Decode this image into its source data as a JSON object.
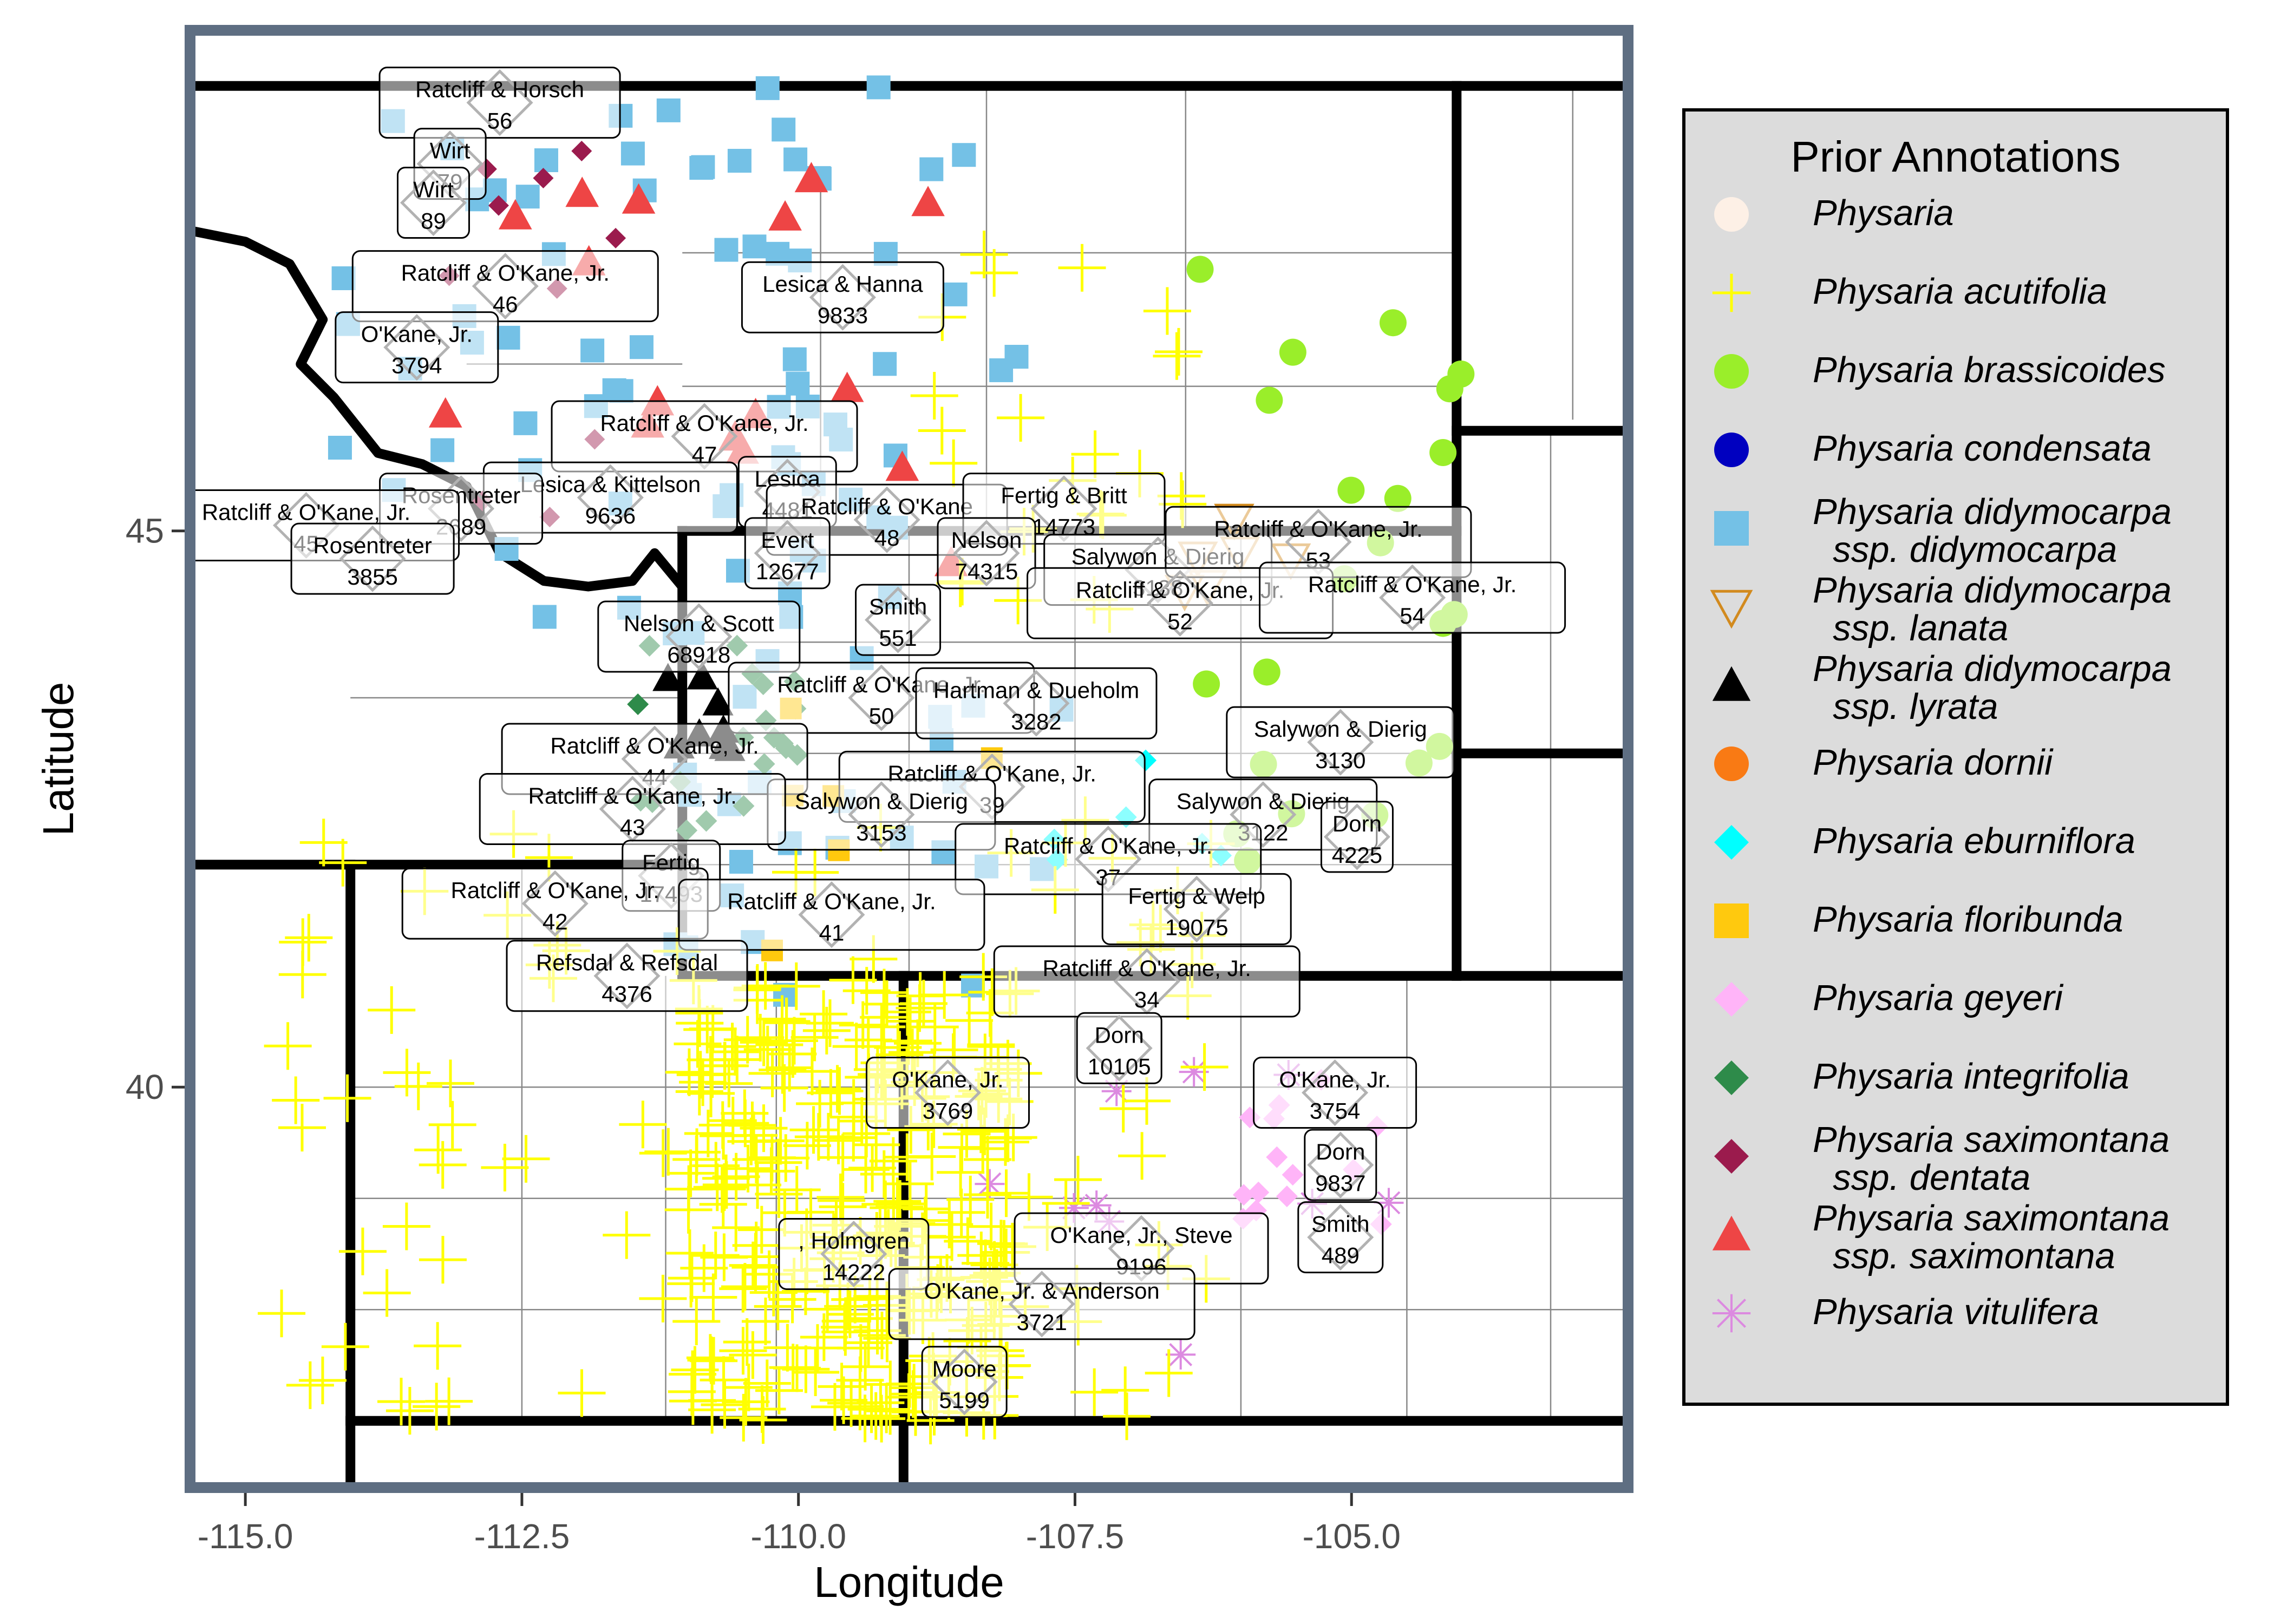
{
  "map": {
    "xlabel": "Longitude",
    "ylabel": "Latitude",
    "xlim": [
      -115.5,
      -102.5
    ],
    "ylim": [
      36.4,
      49.5
    ],
    "x_ticks": [
      {
        "value": -115.0,
        "label": "-115.0"
      },
      {
        "value": -112.5,
        "label": "-112.5"
      },
      {
        "value": -110.0,
        "label": "-110.0"
      },
      {
        "value": -107.5,
        "label": "-107.5"
      },
      {
        "value": -105.0,
        "label": "-105.0"
      }
    ],
    "y_ticks": [
      {
        "value": 40,
        "label": "40"
      },
      {
        "value": 45,
        "label": "45"
      }
    ],
    "state_lines": [
      [
        [
          -115.5,
          49.0
        ],
        [
          -102.5,
          49.0
        ]
      ],
      [
        [
          -104.05,
          49.0
        ],
        [
          -104.05,
          41.0
        ]
      ],
      [
        [
          -111.05,
          45.0
        ],
        [
          -104.05,
          45.0
        ]
      ],
      [
        [
          -111.05,
          45.0
        ],
        [
          -111.05,
          41.0
        ]
      ],
      [
        [
          -115.5,
          42.0
        ],
        [
          -111.05,
          42.0
        ]
      ],
      [
        [
          -114.05,
          42.0
        ],
        [
          -114.05,
          36.4
        ]
      ],
      [
        [
          -111.05,
          41.0
        ],
        [
          -102.5,
          41.0
        ]
      ],
      [
        [
          -109.05,
          41.0
        ],
        [
          -109.05,
          36.4
        ]
      ],
      [
        [
          -114.05,
          37.0
        ],
        [
          -102.5,
          37.0
        ]
      ],
      [
        [
          -102.05,
          37.0
        ],
        [
          -102.05,
          36.4
        ]
      ],
      [
        [
          -104.05,
          45.9
        ],
        [
          -102.5,
          45.9
        ]
      ],
      [
        [
          -104.05,
          43.0
        ],
        [
          -102.5,
          43.0
        ]
      ]
    ],
    "idaho_montana_line": [
      [
        -115.5,
        47.7
      ],
      [
        -115.0,
        47.6
      ],
      [
        -114.6,
        47.4
      ],
      [
        -114.3,
        46.9
      ],
      [
        -114.5,
        46.5
      ],
      [
        -114.2,
        46.2
      ],
      [
        -113.8,
        45.7
      ],
      [
        -113.4,
        45.6
      ],
      [
        -113.0,
        45.4
      ],
      [
        -112.7,
        44.8
      ],
      [
        -112.3,
        44.55
      ],
      [
        -111.9,
        44.5
      ],
      [
        -111.5,
        44.55
      ],
      [
        -111.3,
        44.8
      ],
      [
        -111.05,
        44.5
      ]
    ],
    "county_lines": [
      [
        [
          -114.05,
          43.5
        ],
        [
          -111.05,
          43.5
        ]
      ],
      [
        [
          -113.0,
          46.5
        ],
        [
          -111.05,
          46.5
        ]
      ],
      [
        [
          -109.8,
          48.2
        ],
        [
          -109.8,
          45.0
        ]
      ],
      [
        [
          -108.3,
          49.0
        ],
        [
          -108.3,
          45.0
        ]
      ],
      [
        [
          -106.5,
          49.0
        ],
        [
          -106.5,
          45.0
        ]
      ],
      [
        [
          -111.05,
          47.5
        ],
        [
          -104.05,
          47.5
        ]
      ],
      [
        [
          -111.05,
          46.3
        ],
        [
          -104.05,
          46.3
        ]
      ],
      [
        [
          -111.05,
          44.0
        ],
        [
          -104.05,
          44.0
        ]
      ],
      [
        [
          -111.05,
          43.0
        ],
        [
          -104.05,
          43.0
        ]
      ],
      [
        [
          -111.05,
          42.0
        ],
        [
          -104.05,
          42.0
        ]
      ],
      [
        [
          -109.0,
          45.0
        ],
        [
          -109.0,
          41.0
        ]
      ],
      [
        [
          -107.5,
          45.0
        ],
        [
          -107.5,
          41.0
        ]
      ],
      [
        [
          -106.0,
          45.0
        ],
        [
          -106.0,
          41.0
        ]
      ],
      [
        [
          -109.05,
          40.0
        ],
        [
          -102.05,
          40.0
        ]
      ],
      [
        [
          -109.05,
          39.0
        ],
        [
          -102.05,
          39.0
        ]
      ],
      [
        [
          -109.05,
          38.0
        ],
        [
          -102.05,
          38.0
        ]
      ],
      [
        [
          -107.5,
          41.0
        ],
        [
          -107.5,
          37.0
        ]
      ],
      [
        [
          -106.0,
          41.0
        ],
        [
          -106.0,
          37.0
        ]
      ],
      [
        [
          -104.5,
          41.0
        ],
        [
          -104.5,
          37.0
        ]
      ],
      [
        [
          -103.2,
          41.0
        ],
        [
          -103.2,
          37.0
        ]
      ],
      [
        [
          -114.05,
          40.0
        ],
        [
          -109.05,
          40.0
        ]
      ],
      [
        [
          -114.05,
          39.0
        ],
        [
          -109.05,
          39.0
        ]
      ],
      [
        [
          -114.05,
          38.0
        ],
        [
          -109.05,
          38.0
        ]
      ],
      [
        [
          -112.5,
          42.0
        ],
        [
          -112.5,
          37.0
        ]
      ],
      [
        [
          -111.2,
          41.0
        ],
        [
          -111.2,
          37.0
        ]
      ],
      [
        [
          -110.2,
          41.0
        ],
        [
          -110.2,
          37.0
        ]
      ],
      [
        [
          -103.0,
          49.0
        ],
        [
          -103.0,
          46.0
        ]
      ],
      [
        [
          -103.2,
          45.9
        ],
        [
          -103.2,
          43.0
        ]
      ],
      [
        [
          -103.2,
          43.0
        ],
        [
          -103.2,
          41.0
        ]
      ]
    ],
    "labels": [
      {
        "name": "Ratcliff & Horsch",
        "number": "56",
        "lon": -112.7,
        "lat": 48.85
      },
      {
        "name": "Wirt",
        "number": "79",
        "lon": -113.15,
        "lat": 48.3
      },
      {
        "name": "Wirt",
        "number": "89",
        "lon": -113.3,
        "lat": 47.95
      },
      {
        "name": "Ratcliff & O'Kane, Jr.",
        "number": "46",
        "lon": -112.65,
        "lat": 47.2
      },
      {
        "name": "O'Kane, Jr.",
        "number": "3794",
        "lon": -113.45,
        "lat": 46.65
      },
      {
        "name": "Lesica & Hanna",
        "number": "9833",
        "lon": -109.6,
        "lat": 47.1
      },
      {
        "name": "Ratcliff & O'Kane, Jr.",
        "number": "47",
        "lon": -110.85,
        "lat": 45.85
      },
      {
        "name": "Lesica & Kittelson",
        "number": "9636",
        "lon": -111.7,
        "lat": 45.3
      },
      {
        "name": "Lesica",
        "number": "4481",
        "lon": -110.1,
        "lat": 45.35
      },
      {
        "name": "Rosentreter",
        "number": "2689",
        "lon": -113.05,
        "lat": 45.2
      },
      {
        "name": "Ratcliff & O'Kane, Jr.",
        "number": "45",
        "lon": -114.45,
        "lat": 45.05
      },
      {
        "name": "Rosentreter",
        "number": "3855",
        "lon": -113.85,
        "lat": 44.75
      },
      {
        "name": "Ratcliff & O'Kane",
        "number": "48",
        "lon": -109.2,
        "lat": 45.1
      },
      {
        "name": "Evert",
        "number": "12677",
        "lon": -110.1,
        "lat": 44.8
      },
      {
        "name": "Fertig & Britt",
        "number": "14773",
        "lon": -107.6,
        "lat": 45.2
      },
      {
        "name": "Nelson",
        "number": "74315",
        "lon": -108.3,
        "lat": 44.8
      },
      {
        "name": "Salywon & Dierig",
        "number": "3138",
        "lon": -106.75,
        "lat": 44.65
      },
      {
        "name": "Ratcliff & O'Kane, Jr.",
        "number": "53",
        "lon": -105.3,
        "lat": 44.9
      },
      {
        "name": "Ratcliff & O'Kane, Jr.",
        "number": "52",
        "lon": -106.55,
        "lat": 44.35
      },
      {
        "name": "Ratcliff & O'Kane, Jr.",
        "number": "54",
        "lon": -104.45,
        "lat": 44.4
      },
      {
        "name": "Smith",
        "number": "551",
        "lon": -109.1,
        "lat": 44.2
      },
      {
        "name": "Nelson & Scott",
        "number": "68918",
        "lon": -110.9,
        "lat": 44.05
      },
      {
        "name": "Ratcliff & O'Kane, Jr.",
        "number": "50",
        "lon": -109.25,
        "lat": 43.5
      },
      {
        "name": "Hartman & Dueholm",
        "number": "3282",
        "lon": -107.85,
        "lat": 43.45
      },
      {
        "name": "Salywon & Dierig",
        "number": "3130",
        "lon": -105.1,
        "lat": 43.1
      },
      {
        "name": "Ratcliff & O'Kane, Jr.",
        "number": "44",
        "lon": -111.3,
        "lat": 42.95
      },
      {
        "name": "Ratcliff & O'Kane, Jr.",
        "number": "39",
        "lon": -108.25,
        "lat": 42.7
      },
      {
        "name": "Salywon & Dierig",
        "number": "3153",
        "lon": -109.25,
        "lat": 42.45
      },
      {
        "name": "Ratcliff & O'Kane, Jr.",
        "number": "43",
        "lon": -111.5,
        "lat": 42.5
      },
      {
        "name": "Salywon & Dierig",
        "number": "3122",
        "lon": -105.8,
        "lat": 42.45
      },
      {
        "name": "Dorn",
        "number": "4225",
        "lon": -104.95,
        "lat": 42.25
      },
      {
        "name": "Ratcliff & O'Kane, Jr.",
        "number": "37",
        "lon": -107.2,
        "lat": 42.05
      },
      {
        "name": "Fertig",
        "number": "17493",
        "lon": -111.15,
        "lat": 41.9
      },
      {
        "name": "Ratcliff & O'Kane, Jr.",
        "number": "42",
        "lon": -112.2,
        "lat": 41.65
      },
      {
        "name": "Ratcliff & O'Kane, Jr.",
        "number": "41",
        "lon": -109.7,
        "lat": 41.55
      },
      {
        "name": "Fertig & Welp",
        "number": "19075",
        "lon": -106.4,
        "lat": 41.6
      },
      {
        "name": "Refsdal & Refsdal",
        "number": "4376",
        "lon": -111.55,
        "lat": 41.0
      },
      {
        "name": "Ratcliff & O'Kane, Jr.",
        "number": "34",
        "lon": -106.85,
        "lat": 40.95
      },
      {
        "name": "Dorn",
        "number": "10105",
        "lon": -107.1,
        "lat": 40.35
      },
      {
        "name": "O'Kane, Jr.",
        "number": "3769",
        "lon": -108.65,
        "lat": 39.95
      },
      {
        "name": "O'Kane, Jr.",
        "number": "3754",
        "lon": -105.15,
        "lat": 39.95
      },
      {
        "name": "Dorn",
        "number": "9837",
        "lon": -105.1,
        "lat": 39.3
      },
      {
        "name": "Smith",
        "number": "489",
        "lon": -105.1,
        "lat": 38.65
      },
      {
        "name": ", Holmgren",
        "number": "14222",
        "lon": -109.5,
        "lat": 38.5
      },
      {
        "name": "O'Kane, Jr., Steve",
        "number": "9196",
        "lon": -106.9,
        "lat": 38.55
      },
      {
        "name": "O'Kane, Jr. & Anderson",
        "number": "3721",
        "lon": -107.8,
        "lat": 38.05
      },
      {
        "name": "Moore",
        "number": "5199",
        "lon": -108.5,
        "lat": 37.35
      }
    ]
  },
  "legend": {
    "title": "Prior Annotations",
    "items": [
      {
        "label": "Physaria",
        "color": "#fdf0e6",
        "shape": "circle"
      },
      {
        "label": "Physaria acutifolia",
        "color": "#ffff00",
        "shape": "plus"
      },
      {
        "label": "Physaria brassicoides",
        "color": "#9aee2a",
        "shape": "circle"
      },
      {
        "label": "Physaria condensata",
        "color": "#0000c0",
        "shape": "circle"
      },
      {
        "label": "Physaria didymocarpa\n  ssp. didymocarpa",
        "color": "#74c1e6",
        "shape": "square"
      },
      {
        "label": "Physaria didymocarpa\n  ssp. lanata",
        "color": "#d28a1e",
        "shape": "triangle-down-open"
      },
      {
        "label": "Physaria didymocarpa\n  ssp. lyrata",
        "color": "#000000",
        "shape": "triangle"
      },
      {
        "label": "Physaria dornii",
        "color": "#f97a14",
        "shape": "circle"
      },
      {
        "label": "Physaria eburniflora",
        "color": "#00ffff",
        "shape": "diamond"
      },
      {
        "label": "Physaria floribunda",
        "color": "#ffc90e",
        "shape": "square"
      },
      {
        "label": "Physaria geyeri",
        "color": "#ffb4f8",
        "shape": "diamond"
      },
      {
        "label": "Physaria integrifolia",
        "color": "#2e8b4a",
        "shape": "diamond"
      },
      {
        "label": "Physaria saximontana\n  ssp. dentata",
        "color": "#9b1b4d",
        "shape": "diamond"
      },
      {
        "label": "Physaria saximontana\n  ssp. saximontana",
        "color": "#ee4545",
        "shape": "triangle"
      },
      {
        "label": "Physaria vitulifera",
        "color": "#dc8ae0",
        "shape": "asterisk"
      }
    ]
  }
}
